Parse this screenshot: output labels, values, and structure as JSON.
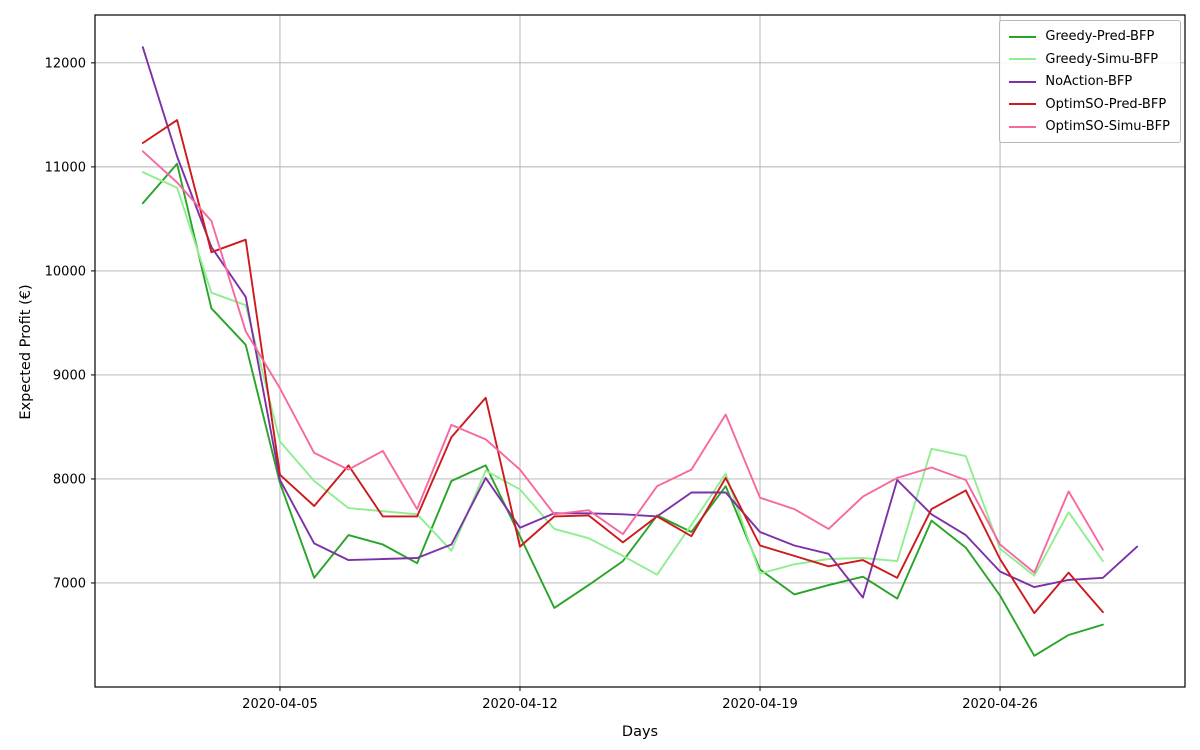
{
  "figure": {
    "background": "#ffffff",
    "grid_color": "#b0b0b0",
    "spine_color": "#000000"
  },
  "chart_data": {
    "type": "line",
    "title": "",
    "xlabel": "Days",
    "ylabel": "Expected Profit (€)",
    "grid": true,
    "legend_position": "upper right",
    "ylim": [
      6000,
      12460
    ],
    "ytick_values": [
      7000,
      8000,
      9000,
      10000,
      11000,
      12000
    ],
    "ytick_labels": [
      "7000",
      "8000",
      "9000",
      "10000",
      "11000",
      "12000"
    ],
    "xtick_labels": [
      "2020-04-05",
      "2020-04-12",
      "2020-04-19",
      "2020-04-26"
    ],
    "x": [
      "2020-04-01",
      "2020-04-02",
      "2020-04-03",
      "2020-04-04",
      "2020-04-05",
      "2020-04-06",
      "2020-04-07",
      "2020-04-08",
      "2020-04-09",
      "2020-04-10",
      "2020-04-11",
      "2020-04-12",
      "2020-04-13",
      "2020-04-14",
      "2020-04-15",
      "2020-04-16",
      "2020-04-17",
      "2020-04-18",
      "2020-04-19",
      "2020-04-20",
      "2020-04-21",
      "2020-04-22",
      "2020-04-23",
      "2020-04-24",
      "2020-04-25",
      "2020-04-26",
      "2020-04-27",
      "2020-04-28",
      "2020-04-29",
      "2020-04-30"
    ],
    "series": [
      {
        "name": "Greedy-Pred-BFP",
        "color": "#28a428",
        "values": [
          10650,
          11030,
          9640,
          9290,
          7960,
          7050,
          7460,
          7370,
          7190,
          7980,
          8130,
          7450,
          6760,
          6980,
          7210,
          7650,
          7490,
          7930,
          7130,
          6890,
          6980,
          7060,
          6850,
          7600,
          7340,
          6880,
          6300,
          6500,
          6600,
          null
        ]
      },
      {
        "name": "Greedy-Simu-BFP",
        "color": "#90ee90",
        "values": [
          10950,
          10800,
          9790,
          9670,
          8360,
          7980,
          7720,
          7690,
          7660,
          7310,
          8080,
          7900,
          7520,
          7430,
          7260,
          7080,
          7560,
          8050,
          7090,
          7180,
          7230,
          7240,
          7210,
          8290,
          8220,
          7330,
          7070,
          7680,
          7210,
          null
        ]
      },
      {
        "name": "NoAction-BFP",
        "color": "#7d31a8",
        "values": [
          12150,
          11100,
          10230,
          9750,
          7990,
          7380,
          7220,
          7230,
          7240,
          7370,
          8010,
          7530,
          7670,
          7670,
          7660,
          7640,
          7870,
          7870,
          7490,
          7360,
          7280,
          6860,
          7990,
          7660,
          7460,
          7110,
          6960,
          7030,
          7050,
          7350
        ]
      },
      {
        "name": "OptimSO-Pred-BFP",
        "color": "#cc1a1d",
        "values": [
          11230,
          11450,
          10180,
          10300,
          8040,
          7740,
          8130,
          7640,
          7640,
          8400,
          8780,
          7350,
          7640,
          7650,
          7390,
          7640,
          7450,
          8010,
          7360,
          7260,
          7160,
          7220,
          7050,
          7710,
          7890,
          7230,
          6710,
          7100,
          6720,
          null
        ]
      },
      {
        "name": "OptimSO-Simu-BFP",
        "color": "#f768a1",
        "values": [
          11150,
          10850,
          10480,
          9420,
          8870,
          8250,
          8090,
          8270,
          7710,
          8520,
          8380,
          8090,
          7660,
          7700,
          7470,
          7930,
          8090,
          8620,
          7820,
          7710,
          7520,
          7830,
          8010,
          8110,
          7990,
          7370,
          7100,
          7880,
          7320,
          null
        ]
      }
    ]
  }
}
